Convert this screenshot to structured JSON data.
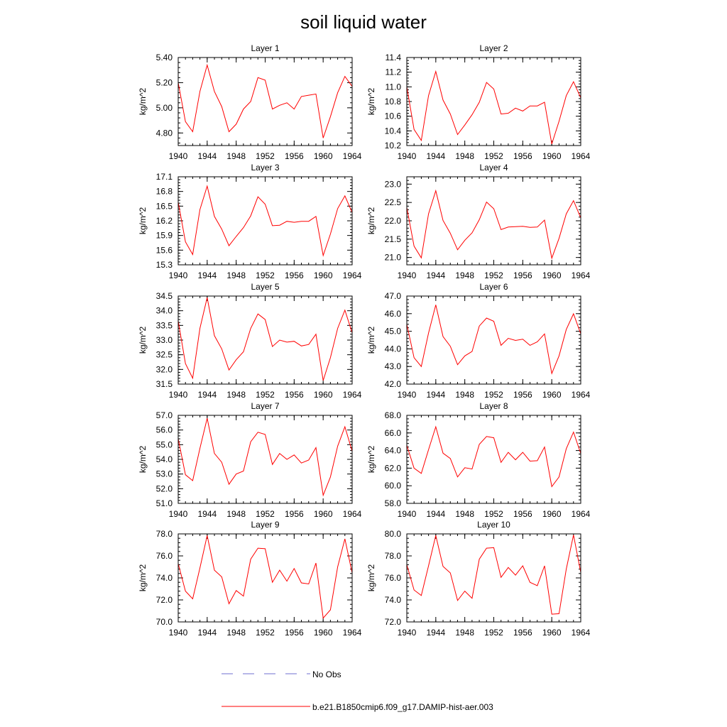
{
  "title": "soil liquid water",
  "ylabel": "kg/m^2",
  "x_ticks": [
    1940,
    1944,
    1948,
    1952,
    1956,
    1960,
    1964
  ],
  "legend": {
    "entries": [
      {
        "label": "No Obs",
        "color": "#6f6fd0",
        "style": "dashed"
      },
      {
        "label": "b.e21.B1850cmip6.f09_g17.DAMIP-hist-aer.003",
        "color": "#ff0000",
        "style": "solid"
      }
    ]
  },
  "chart_data": [
    {
      "type": "line",
      "title": "Layer 1",
      "ylabel": "kg/m^2",
      "xlim": [
        1940,
        1964
      ],
      "ylim": [
        4.7,
        5.4
      ],
      "yticks": [
        "4.80",
        "5.00",
        "5.20",
        "5.40"
      ],
      "ytick_values": [
        4.8,
        5.0,
        5.2,
        5.4
      ],
      "series": [
        {
          "name": "b.e21.B1850cmip6.f09_g17.DAMIP-hist-aer.003",
          "x": [
            1940,
            1941,
            1942,
            1943,
            1944,
            1945,
            1946,
            1947,
            1948,
            1949,
            1950,
            1951,
            1952,
            1953,
            1954,
            1955,
            1956,
            1957,
            1958,
            1959,
            1960,
            1961,
            1962,
            1963,
            1964
          ],
          "y": [
            5.2,
            4.89,
            4.81,
            5.13,
            5.34,
            5.13,
            5.01,
            4.81,
            4.87,
            4.99,
            5.05,
            5.24,
            5.22,
            4.99,
            5.02,
            5.04,
            4.99,
            5.09,
            5.1,
            5.11,
            4.76,
            4.93,
            5.12,
            5.25,
            5.17
          ]
        }
      ]
    },
    {
      "type": "line",
      "title": "Layer 2",
      "ylabel": "kg/m^2",
      "xlim": [
        1940,
        1964
      ],
      "ylim": [
        10.2,
        11.4
      ],
      "yticks": [
        "10.2",
        "10.4",
        "10.6",
        "10.8",
        "11.0",
        "11.2",
        "11.4"
      ],
      "ytick_values": [
        10.2,
        10.4,
        10.6,
        10.8,
        11.0,
        11.2,
        11.4
      ],
      "series": [
        {
          "name": "b.e21.B1850cmip6.f09_g17.DAMIP-hist-aer.003",
          "x": [
            1940,
            1941,
            1942,
            1943,
            1944,
            1945,
            1946,
            1947,
            1948,
            1949,
            1950,
            1951,
            1952,
            1953,
            1954,
            1955,
            1956,
            1957,
            1958,
            1959,
            1960,
            1961,
            1962,
            1963,
            1964
          ],
          "y": [
            11.0,
            10.42,
            10.27,
            10.88,
            11.21,
            10.82,
            10.63,
            10.35,
            10.48,
            10.62,
            10.79,
            11.06,
            10.97,
            10.63,
            10.64,
            10.71,
            10.67,
            10.74,
            10.74,
            10.79,
            10.22,
            10.53,
            10.88,
            11.07,
            10.85
          ]
        }
      ]
    },
    {
      "type": "line",
      "title": "Layer 3",
      "ylabel": "kg/m^2",
      "xlim": [
        1940,
        1964
      ],
      "ylim": [
        15.3,
        17.1
      ],
      "yticks": [
        "15.3",
        "15.6",
        "15.9",
        "16.2",
        "16.5",
        "16.8",
        "17.1"
      ],
      "ytick_values": [
        15.3,
        15.6,
        15.9,
        16.2,
        16.5,
        16.8,
        17.1
      ],
      "series": [
        {
          "name": "b.e21.B1850cmip6.f09_g17.DAMIP-hist-aer.003",
          "x": [
            1940,
            1941,
            1942,
            1943,
            1944,
            1945,
            1946,
            1947,
            1948,
            1949,
            1950,
            1951,
            1952,
            1953,
            1954,
            1955,
            1956,
            1957,
            1958,
            1959,
            1960,
            1961,
            1962,
            1963,
            1964
          ],
          "y": [
            16.58,
            15.77,
            15.51,
            16.43,
            16.91,
            16.29,
            16.03,
            15.69,
            15.88,
            16.06,
            16.3,
            16.69,
            16.54,
            16.1,
            16.11,
            16.19,
            16.17,
            16.19,
            16.19,
            16.29,
            15.49,
            15.93,
            16.45,
            16.71,
            16.37
          ]
        }
      ]
    },
    {
      "type": "line",
      "title": "Layer 4",
      "ylabel": "kg/m^2",
      "xlim": [
        1940,
        1964
      ],
      "ylim": [
        20.8,
        23.2
      ],
      "yticks": [
        "21.0",
        "21.5",
        "22.0",
        "22.5",
        "23.0"
      ],
      "ytick_values": [
        21.0,
        21.5,
        22.0,
        22.5,
        23.0
      ],
      "series": [
        {
          "name": "b.e21.B1850cmip6.f09_g17.DAMIP-hist-aer.003",
          "x": [
            1940,
            1941,
            1942,
            1943,
            1944,
            1945,
            1946,
            1947,
            1948,
            1949,
            1950,
            1951,
            1952,
            1953,
            1954,
            1955,
            1956,
            1957,
            1958,
            1959,
            1960,
            1961,
            1962,
            1963,
            1964
          ],
          "y": [
            22.36,
            21.31,
            20.99,
            22.19,
            22.82,
            22.01,
            21.66,
            21.21,
            21.47,
            21.67,
            22.03,
            22.51,
            22.33,
            21.76,
            21.83,
            21.84,
            21.85,
            21.82,
            21.83,
            22.02,
            20.98,
            21.52,
            22.19,
            22.55,
            22.08
          ]
        }
      ]
    },
    {
      "type": "line",
      "title": "Layer 5",
      "ylabel": "kg/m^2",
      "xlim": [
        1940,
        1964
      ],
      "ylim": [
        31.5,
        34.5
      ],
      "yticks": [
        "31.5",
        "32.0",
        "32.5",
        "33.0",
        "33.5",
        "34.0",
        "34.5"
      ],
      "ytick_values": [
        31.5,
        32.0,
        32.5,
        33.0,
        33.5,
        34.0,
        34.5
      ],
      "series": [
        {
          "name": "b.e21.B1850cmip6.f09_g17.DAMIP-hist-aer.003",
          "x": [
            1940,
            1941,
            1942,
            1943,
            1944,
            1945,
            1946,
            1947,
            1948,
            1949,
            1950,
            1951,
            1952,
            1953,
            1954,
            1955,
            1956,
            1957,
            1958,
            1959,
            1960,
            1961,
            1962,
            1963,
            1964
          ],
          "y": [
            33.65,
            32.2,
            31.7,
            33.4,
            34.45,
            33.15,
            32.7,
            31.98,
            32.33,
            32.6,
            33.4,
            33.89,
            33.7,
            32.78,
            33.0,
            32.93,
            32.96,
            32.8,
            32.85,
            33.2,
            31.62,
            32.4,
            33.4,
            34.02,
            33.25
          ]
        }
      ]
    },
    {
      "type": "line",
      "title": "Layer 6",
      "ylabel": "kg/m^2",
      "xlim": [
        1940,
        1964
      ],
      "ylim": [
        42.0,
        47.0
      ],
      "yticks": [
        "42.0",
        "43.0",
        "44.0",
        "45.0",
        "46.0",
        "47.0"
      ],
      "ytick_values": [
        42.0,
        43.0,
        44.0,
        45.0,
        46.0,
        47.0
      ],
      "series": [
        {
          "name": "b.e21.B1850cmip6.f09_g17.DAMIP-hist-aer.003",
          "x": [
            1940,
            1941,
            1942,
            1943,
            1944,
            1945,
            1946,
            1947,
            1948,
            1949,
            1950,
            1951,
            1952,
            1953,
            1954,
            1955,
            1956,
            1957,
            1958,
            1959,
            1960,
            1961,
            1962,
            1963,
            1964
          ],
          "y": [
            45.4,
            43.5,
            43.0,
            44.9,
            46.5,
            44.7,
            44.15,
            43.1,
            43.6,
            43.85,
            45.3,
            45.75,
            45.57,
            44.2,
            44.6,
            44.48,
            44.55,
            44.2,
            44.4,
            44.85,
            42.6,
            43.6,
            45.1,
            45.99,
            44.85
          ]
        }
      ]
    },
    {
      "type": "line",
      "title": "Layer 7",
      "ylabel": "kg/m^2",
      "xlim": [
        1940,
        1964
      ],
      "ylim": [
        51.0,
        57.0
      ],
      "yticks": [
        "51.0",
        "52.0",
        "53.0",
        "54.0",
        "55.0",
        "56.0",
        "57.0"
      ],
      "ytick_values": [
        51.0,
        52.0,
        53.0,
        54.0,
        55.0,
        56.0,
        57.0
      ],
      "series": [
        {
          "name": "b.e21.B1850cmip6.f09_g17.DAMIP-hist-aer.003",
          "x": [
            1940,
            1941,
            1942,
            1943,
            1944,
            1945,
            1946,
            1947,
            1948,
            1949,
            1950,
            1951,
            1952,
            1953,
            1954,
            1955,
            1956,
            1957,
            1958,
            1959,
            1960,
            1961,
            1962,
            1963,
            1964
          ],
          "y": [
            55.4,
            52.95,
            52.55,
            54.75,
            56.8,
            54.4,
            53.8,
            52.3,
            53.0,
            53.2,
            55.2,
            55.85,
            55.7,
            53.65,
            54.4,
            54.0,
            54.3,
            53.75,
            53.95,
            54.8,
            51.55,
            52.8,
            54.9,
            56.22,
            54.55
          ]
        }
      ]
    },
    {
      "type": "line",
      "title": "Layer 8",
      "ylabel": "kg/m^2",
      "xlim": [
        1940,
        1964
      ],
      "ylim": [
        58.0,
        68.0
      ],
      "yticks": [
        "58.0",
        "60.0",
        "62.0",
        "64.0",
        "66.0",
        "68.0"
      ],
      "ytick_values": [
        58.0,
        60.0,
        62.0,
        64.0,
        66.0,
        68.0
      ],
      "series": [
        {
          "name": "b.e21.B1850cmip6.f09_g17.DAMIP-hist-aer.003",
          "x": [
            1940,
            1941,
            1942,
            1943,
            1944,
            1945,
            1946,
            1947,
            1948,
            1949,
            1950,
            1951,
            1952,
            1953,
            1954,
            1955,
            1956,
            1957,
            1958,
            1959,
            1960,
            1961,
            1962,
            1963,
            1964
          ],
          "y": [
            64.6,
            62.0,
            61.4,
            64.1,
            66.7,
            63.7,
            63.1,
            61.0,
            62.05,
            61.9,
            64.7,
            65.6,
            65.45,
            62.65,
            63.8,
            62.95,
            63.8,
            62.8,
            62.85,
            64.4,
            59.9,
            61.0,
            64.2,
            66.1,
            63.65
          ]
        }
      ]
    },
    {
      "type": "line",
      "title": "Layer 9",
      "ylabel": "kg/m^2",
      "xlim": [
        1940,
        1964
      ],
      "ylim": [
        70.0,
        78.0
      ],
      "yticks": [
        "70.0",
        "72.0",
        "74.0",
        "76.0",
        "78.0"
      ],
      "ytick_values": [
        70.0,
        72.0,
        74.0,
        76.0,
        78.0
      ],
      "series": [
        {
          "name": "b.e21.B1850cmip6.f09_g17.DAMIP-hist-aer.003",
          "x": [
            1940,
            1941,
            1942,
            1943,
            1944,
            1945,
            1946,
            1947,
            1948,
            1949,
            1950,
            1951,
            1952,
            1953,
            1954,
            1955,
            1956,
            1957,
            1958,
            1959,
            1960,
            1961,
            1962,
            1963,
            1964
          ],
          "y": [
            75.3,
            72.8,
            72.1,
            74.9,
            77.85,
            74.7,
            74.1,
            71.65,
            72.85,
            72.35,
            75.7,
            76.7,
            76.65,
            73.6,
            74.7,
            73.7,
            74.85,
            73.55,
            73.45,
            75.35,
            70.35,
            71.1,
            75.0,
            77.55,
            74.45
          ]
        }
      ]
    },
    {
      "type": "line",
      "title": "Layer 10",
      "ylabel": "kg/m^2",
      "xlim": [
        1940,
        1964
      ],
      "ylim": [
        72.0,
        80.0
      ],
      "yticks": [
        "72.0",
        "74.0",
        "76.0",
        "78.0",
        "80.0"
      ],
      "ytick_values": [
        72.0,
        74.0,
        76.0,
        78.0,
        80.0
      ],
      "series": [
        {
          "name": "b.e21.B1850cmip6.f09_g17.DAMIP-hist-aer.003",
          "x": [
            1940,
            1941,
            1942,
            1943,
            1944,
            1945,
            1946,
            1947,
            1948,
            1949,
            1950,
            1951,
            1952,
            1953,
            1954,
            1955,
            1956,
            1957,
            1958,
            1959,
            1960,
            1961,
            1962,
            1963,
            1964
          ],
          "y": [
            77.2,
            74.9,
            74.4,
            77.1,
            79.85,
            77.05,
            76.45,
            73.95,
            74.8,
            74.15,
            77.7,
            78.7,
            78.75,
            76.05,
            76.95,
            76.25,
            77.1,
            75.6,
            75.3,
            77.1,
            72.7,
            72.75,
            76.8,
            79.9,
            76.5
          ]
        }
      ]
    }
  ]
}
